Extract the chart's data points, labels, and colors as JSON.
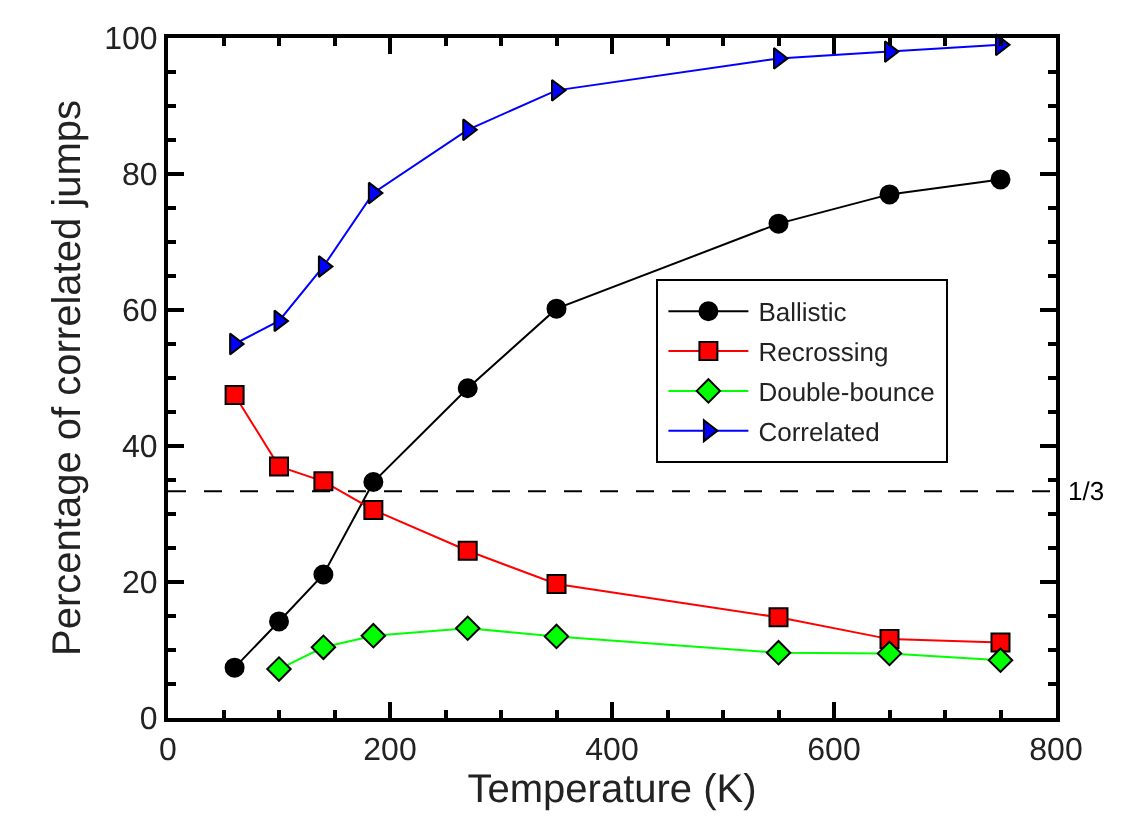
{
  "chart_data": {
    "type": "line",
    "xlabel": "Temperature (K)",
    "ylabel": "Percentage of correlated jumps",
    "series": [
      {
        "name": "Ballistic",
        "color": "#000000",
        "marker": "circle",
        "x": [
          60,
          100,
          140,
          185,
          270,
          350,
          550,
          650,
          750
        ],
        "values": [
          7.4,
          14.2,
          21.1,
          34.7,
          48.5,
          60.2,
          72.7,
          77.0,
          79.2
        ]
      },
      {
        "name": "Recrossing",
        "color": "#ff0000",
        "marker": "square",
        "x": [
          60,
          100,
          140,
          185,
          270,
          350,
          550,
          650,
          750
        ],
        "values": [
          47.5,
          37.0,
          34.8,
          30.6,
          24.6,
          19.7,
          14.8,
          11.6,
          11.1
        ]
      },
      {
        "name": "Double-bounce",
        "color": "#00ff00",
        "marker": "diamond",
        "x": [
          100,
          140,
          185,
          270,
          350,
          550,
          650,
          750
        ],
        "values": [
          7.2,
          10.4,
          12.1,
          13.2,
          12.0,
          9.6,
          9.5,
          8.5
        ]
      },
      {
        "name": "Correlated",
        "color": "#0000ff",
        "marker": "triangle",
        "x": [
          60,
          100,
          140,
          185,
          270,
          350,
          550,
          650,
          750
        ],
        "values": [
          55.0,
          58.4,
          66.4,
          77.2,
          86.5,
          92.3,
          97.0,
          98.0,
          99.0
        ]
      }
    ],
    "xlim": [
      0,
      800
    ],
    "xticks": [
      0,
      200,
      400,
      600,
      800
    ],
    "ylim": [
      0,
      100
    ],
    "yticks": [
      0,
      20,
      40,
      60,
      80,
      100
    ],
    "ref_lines": [
      {
        "axis": "y",
        "value": 33.33,
        "color": "#000000",
        "line_style": "dashed"
      }
    ],
    "annotations": [
      "1/3"
    ],
    "legend": "right"
  }
}
